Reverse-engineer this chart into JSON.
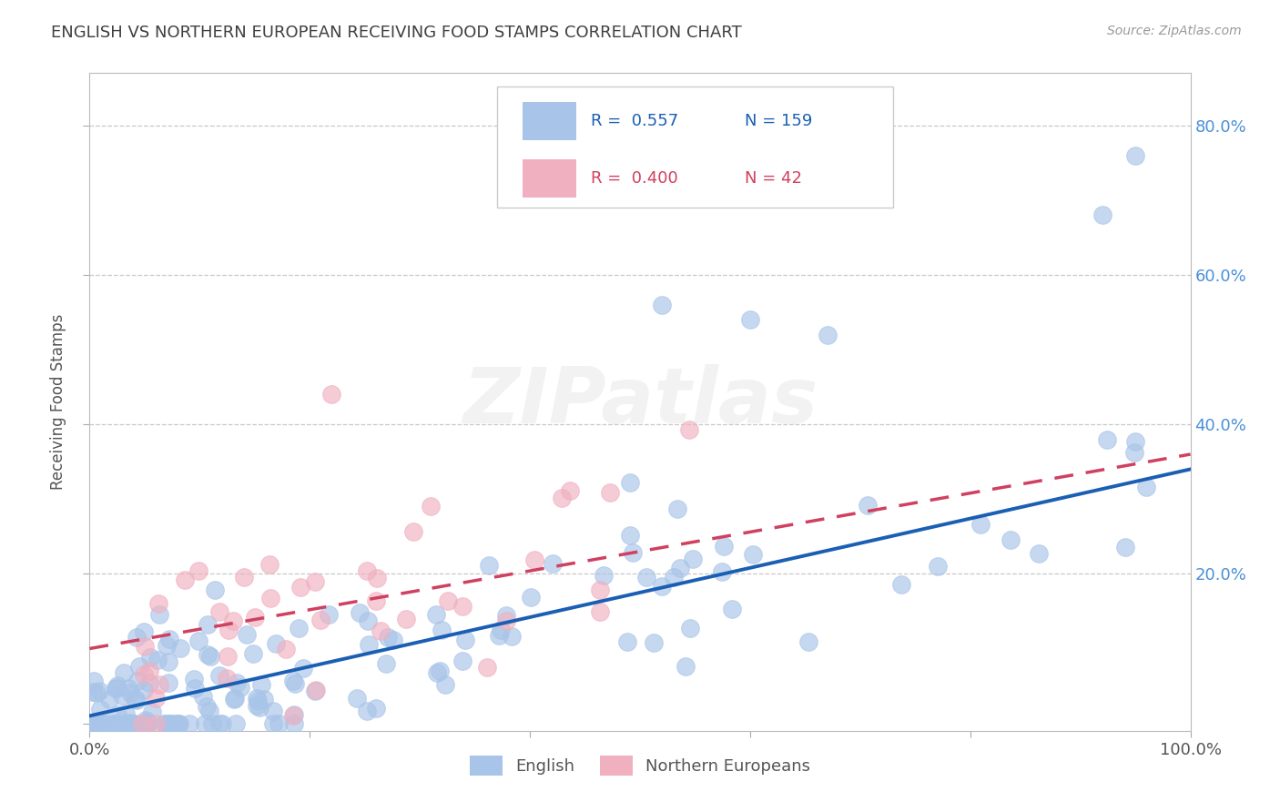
{
  "title": "ENGLISH VS NORTHERN EUROPEAN RECEIVING FOOD STAMPS CORRELATION CHART",
  "source": "Source: ZipAtlas.com",
  "ylabel": "Receiving Food Stamps",
  "watermark": "ZIPatlas",
  "english_R": 0.557,
  "english_N": 159,
  "northern_R": 0.4,
  "northern_N": 42,
  "english_color": "#a8c4e8",
  "northern_color": "#f0b0c0",
  "english_line_color": "#1a5fb4",
  "northern_line_color": "#d04060",
  "background_color": "#ffffff",
  "grid_color": "#c8c8c8",
  "title_color": "#404040",
  "title_fontsize": 13,
  "right_tick_color": "#4a90d9",
  "eng_line_intercept": 0.01,
  "eng_line_slope": 0.33,
  "nor_line_intercept": 0.1,
  "nor_line_slope": 0.26
}
